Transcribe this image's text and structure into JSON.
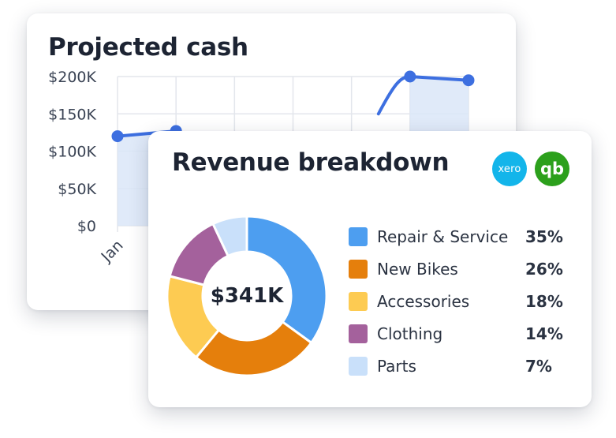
{
  "projected_cash": {
    "title": "Projected cash"
  },
  "revenue_breakdown": {
    "title": "Revenue breakdown",
    "total_label": "$341K",
    "integrations": [
      {
        "name": "xero",
        "label": "xero",
        "color": "#13b5ea"
      },
      {
        "name": "quickbooks",
        "label": "qb",
        "color": "#2ca01c"
      }
    ]
  },
  "chart_data": [
    {
      "type": "area",
      "title": "Projected cash",
      "xlabel": "",
      "ylabel": "",
      "x": [
        "Jan",
        "",
        "",
        "",
        "",
        "",
        ""
      ],
      "yticks": [
        "$0",
        "$50K",
        "$100K",
        "$150K",
        "$200K"
      ],
      "ylim": [
        0,
        200000
      ],
      "grid": true,
      "series": [
        {
          "color": "#3d6fe0",
          "fill": "#dbe6f8",
          "values": [
            120000,
            127000,
            null,
            null,
            null,
            200000,
            195000
          ]
        }
      ]
    },
    {
      "type": "pie",
      "title": "Revenue breakdown",
      "donut": true,
      "center_label": "$341K",
      "legend": "right",
      "series": [
        {
          "name": "Repair & Service",
          "value": 35,
          "label": "35%",
          "color": "#4d9ef0"
        },
        {
          "name": "New Bikes",
          "value": 26,
          "label": "26%",
          "color": "#e57f0c"
        },
        {
          "name": "Accessories",
          "value": 18,
          "label": "18%",
          "color": "#fdcb52"
        },
        {
          "name": "Clothing",
          "value": 14,
          "label": "14%",
          "color": "#a4619c"
        },
        {
          "name": "Parts",
          "value": 7,
          "label": "7%",
          "color": "#c9e0fa"
        }
      ]
    }
  ]
}
